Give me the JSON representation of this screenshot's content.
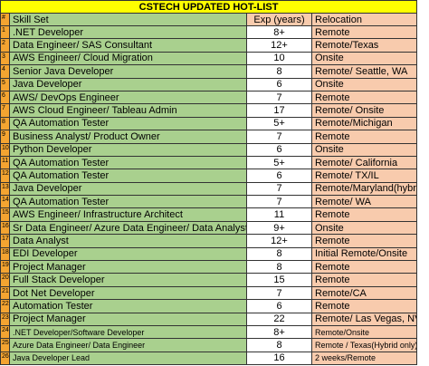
{
  "title": "CSTECH UPDATED HOT-LIST",
  "table": {
    "header": [
      "#",
      "Skill Set",
      "Exp (years)",
      "Relocation"
    ],
    "rows": [
      [
        "1",
        ".NET Developer",
        "8+",
        "Remote"
      ],
      [
        "2",
        "Data Engineer/ SAS Consultant",
        "12+",
        "Remote/Texas"
      ],
      [
        "3",
        "AWS Engineer/ Cloud Migration",
        "10",
        "Onsite"
      ],
      [
        "4",
        "Senior Java Developer",
        "8",
        "Remote/ Seattle, WA"
      ],
      [
        "5",
        "Java Developer",
        "6",
        "Onsite"
      ],
      [
        "6",
        "AWS/ DevOps Engineer",
        "7",
        "Remote"
      ],
      [
        "7",
        "AWS Cloud Engineer/ Tableau Admin",
        "17",
        "Remote/ Onsite"
      ],
      [
        "8",
        "QA Automation Tester",
        "5+",
        "Remote/Michigan"
      ],
      [
        "9",
        "Business Analyst/ Product Owner",
        "7",
        "Remote"
      ],
      [
        "10",
        "Python Developer",
        "6",
        "Onsite"
      ],
      [
        "11",
        "QA Automation Tester",
        "5+",
        "Remote/ California"
      ],
      [
        "12",
        "QA Automation Tester",
        "6",
        "Remote/ TX/IL"
      ],
      [
        "13",
        "Java Developer",
        "7",
        "Remote/Maryland(hybrid)"
      ],
      [
        "14",
        "QA Automation Tester",
        "7",
        "Remote/ WA"
      ],
      [
        "15",
        "AWS Engineer/ Infrastructure Architect",
        "11",
        "Remote"
      ],
      [
        "16",
        "Sr Data Engineer/ Azure Data Engineer/ Data Analyst",
        "9+",
        "Onsite"
      ],
      [
        "17",
        "Data Analyst",
        "12+",
        "Remote"
      ],
      [
        "18",
        "EDI Developer",
        "8",
        "Initial Remote/Onsite"
      ],
      [
        "19",
        "Project Manager",
        "8",
        "Remote"
      ],
      [
        "20",
        "Full Stack Developer",
        "15",
        "Remote"
      ],
      [
        "21",
        "Dot Net Developer",
        "7",
        "Remote/CA"
      ],
      [
        "22",
        "Automation Tester",
        "6",
        "Remote"
      ],
      [
        "23",
        "Project Manager",
        "22",
        "Remote/ Las Vegas, NV"
      ],
      [
        "24",
        ".NET Developer/Software Developer",
        "8+",
        "Remote/Onsite"
      ],
      [
        "25",
        "Azure Data Engineer/ Data Engineer",
        "8",
        "Remote / Texas(Hybrid only)"
      ],
      [
        "26",
        "Java Developer Lead",
        "16",
        "2 weeks/Remote"
      ]
    ]
  }
}
